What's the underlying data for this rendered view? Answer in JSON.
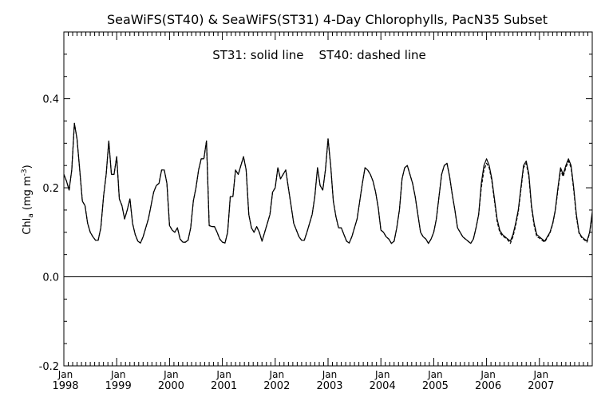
{
  "chart_data": {
    "type": "line",
    "title": "SeaWiFS(ST40) & SeaWiFS(ST31) 4-Day Chlorophylls, PacN35 Subset",
    "annotation": "ST31: solid line    ST40: dashed line",
    "ylabel_main": "Chl",
    "ylabel_sub": "a",
    "ylabel_unit_pre": " (mg m",
    "ylabel_unit_sup": "-3",
    "ylabel_unit_post": ")",
    "ylim": [
      -0.2,
      0.55
    ],
    "xlim": [
      1998.0,
      2008.0
    ],
    "yticks": [
      -0.2,
      0.0,
      0.2,
      0.4
    ],
    "ytick_labels": [
      "-0.2",
      "0.0",
      "0.2",
      "0.4"
    ],
    "xticks": [
      1998,
      1999,
      2000,
      2001,
      2002,
      2003,
      2004,
      2005,
      2006,
      2007
    ],
    "xtick_month_label": "Jan",
    "xtick_year_labels": [
      "1998",
      "1999",
      "2000",
      "2001",
      "2002",
      "2003",
      "2004",
      "2005",
      "2006",
      "2007"
    ],
    "zero_line": 0.0,
    "series": [
      {
        "name": "ST31",
        "style": "solid",
        "x": [
          1998.0,
          1998.05,
          1998.1,
          1998.15,
          1998.2,
          1998.25,
          1998.3,
          1998.35,
          1998.4,
          1998.45,
          1998.5,
          1998.55,
          1998.6,
          1998.65,
          1998.7,
          1998.75,
          1998.8,
          1998.85,
          1998.9,
          1998.95,
          1999.0,
          1999.05,
          1999.1,
          1999.15,
          1999.2,
          1999.25,
          1999.3,
          1999.35,
          1999.4,
          1999.45,
          1999.5,
          1999.55,
          1999.6,
          1999.65,
          1999.7,
          1999.75,
          1999.8,
          1999.85,
          1999.9,
          1999.95,
          2000.0,
          2000.05,
          2000.1,
          2000.15,
          2000.2,
          2000.25,
          2000.3,
          2000.35,
          2000.4,
          2000.45,
          2000.5,
          2000.55,
          2000.6,
          2000.65,
          2000.7,
          2000.75,
          2000.8,
          2000.85,
          2000.9,
          2000.95,
          2001.0,
          2001.05,
          2001.1,
          2001.15,
          2001.2,
          2001.25,
          2001.3,
          2001.35,
          2001.4,
          2001.45,
          2001.5,
          2001.55,
          2001.6,
          2001.65,
          2001.7,
          2001.75,
          2001.8,
          2001.85,
          2001.9,
          2001.95,
          2002.0,
          2002.05,
          2002.1,
          2002.15,
          2002.2,
          2002.25,
          2002.3,
          2002.35,
          2002.4,
          2002.45,
          2002.5,
          2002.55,
          2002.6,
          2002.65,
          2002.7,
          2002.75,
          2002.8,
          2002.85,
          2002.9,
          2002.95,
          2003.0,
          2003.05,
          2003.1,
          2003.15,
          2003.2,
          2003.25,
          2003.3,
          2003.35,
          2003.4,
          2003.45,
          2003.5,
          2003.55,
          2003.6,
          2003.65,
          2003.7,
          2003.75,
          2003.8,
          2003.85,
          2003.9,
          2003.95,
          2004.0,
          2004.05,
          2004.1,
          2004.15,
          2004.2,
          2004.25,
          2004.3,
          2004.35,
          2004.4,
          2004.45,
          2004.5,
          2004.55,
          2004.6,
          2004.65,
          2004.7,
          2004.75,
          2004.8,
          2004.85,
          2004.9,
          2004.95,
          2005.0,
          2005.05,
          2005.1,
          2005.15,
          2005.2,
          2005.25,
          2005.3,
          2005.35,
          2005.4,
          2005.45,
          2005.5,
          2005.55,
          2005.6,
          2005.65,
          2005.7,
          2005.75,
          2005.8,
          2005.85,
          2005.9,
          2005.95,
          2006.0,
          2006.05,
          2006.1,
          2006.15,
          2006.2,
          2006.25,
          2006.3,
          2006.35,
          2006.4,
          2006.45,
          2006.5,
          2006.55,
          2006.6,
          2006.65,
          2006.7,
          2006.75,
          2006.8,
          2006.85,
          2006.9,
          2006.95,
          2007.0,
          2007.05,
          2007.1,
          2007.15,
          2007.2,
          2007.25,
          2007.3,
          2007.35,
          2007.4,
          2007.45,
          2007.5,
          2007.55,
          2007.6,
          2007.65,
          2007.7,
          2007.75,
          2007.8,
          2007.85,
          2007.9,
          2007.95,
          2008.0
        ],
        "y": [
          0.23,
          0.215,
          0.195,
          0.24,
          0.345,
          0.31,
          0.24,
          0.17,
          0.16,
          0.12,
          0.1,
          0.09,
          0.082,
          0.082,
          0.11,
          0.18,
          0.23,
          0.305,
          0.23,
          0.23,
          0.27,
          0.175,
          0.16,
          0.13,
          0.15,
          0.175,
          0.12,
          0.095,
          0.08,
          0.076,
          0.09,
          0.11,
          0.13,
          0.16,
          0.19,
          0.205,
          0.21,
          0.24,
          0.24,
          0.21,
          0.115,
          0.105,
          0.1,
          0.11,
          0.085,
          0.078,
          0.078,
          0.082,
          0.11,
          0.17,
          0.2,
          0.24,
          0.265,
          0.265,
          0.305,
          0.115,
          0.113,
          0.113,
          0.1,
          0.085,
          0.078,
          0.076,
          0.1,
          0.18,
          0.18,
          0.24,
          0.23,
          0.25,
          0.27,
          0.24,
          0.14,
          0.11,
          0.1,
          0.113,
          0.1,
          0.08,
          0.1,
          0.12,
          0.14,
          0.19,
          0.2,
          0.245,
          0.22,
          0.23,
          0.24,
          0.2,
          0.16,
          0.12,
          0.105,
          0.09,
          0.082,
          0.082,
          0.1,
          0.12,
          0.14,
          0.18,
          0.245,
          0.205,
          0.195,
          0.24,
          0.31,
          0.25,
          0.17,
          0.135,
          0.11,
          0.11,
          0.095,
          0.08,
          0.076,
          0.09,
          0.11,
          0.13,
          0.17,
          0.21,
          0.245,
          0.24,
          0.23,
          0.215,
          0.19,
          0.155,
          0.105,
          0.1,
          0.09,
          0.085,
          0.075,
          0.08,
          0.11,
          0.15,
          0.22,
          0.245,
          0.25,
          0.23,
          0.21,
          0.18,
          0.14,
          0.1,
          0.09,
          0.085,
          0.075,
          0.085,
          0.1,
          0.13,
          0.18,
          0.23,
          0.25,
          0.255,
          0.225,
          0.185,
          0.15,
          0.11,
          0.1,
          0.09,
          0.085,
          0.08,
          0.075,
          0.085,
          0.11,
          0.14,
          0.21,
          0.25,
          0.265,
          0.25,
          0.22,
          0.175,
          0.13,
          0.105,
          0.095,
          0.09,
          0.085,
          0.08,
          0.095,
          0.12,
          0.15,
          0.2,
          0.25,
          0.26,
          0.23,
          0.16,
          0.12,
          0.095,
          0.09,
          0.085,
          0.08,
          0.09,
          0.1,
          0.12,
          0.15,
          0.2,
          0.245,
          0.23,
          0.25,
          0.265,
          0.25,
          0.2,
          0.14,
          0.1,
          0.09,
          0.085,
          0.08,
          0.1,
          0.145
        ]
      },
      {
        "name": "ST40",
        "style": "dashed",
        "x": [
          1998.0,
          1998.05,
          1998.1,
          1998.15,
          1998.2,
          1998.25,
          1998.3,
          1998.35,
          1998.4,
          1998.45,
          1998.5,
          1998.55,
          1998.6,
          1998.65,
          1998.7,
          1998.75,
          1998.8,
          1998.85,
          1998.9,
          1998.95,
          1999.0,
          1999.05,
          1999.1,
          1999.15,
          1999.2,
          1999.25,
          1999.3,
          1999.35,
          1999.4,
          1999.45,
          1999.5,
          1999.55,
          1999.6,
          1999.65,
          1999.7,
          1999.75,
          1999.8,
          1999.85,
          1999.9,
          1999.95,
          2000.0,
          2000.05,
          2000.1,
          2000.15,
          2000.2,
          2000.25,
          2000.3,
          2000.35,
          2000.4,
          2000.45,
          2000.5,
          2000.55,
          2000.6,
          2000.65,
          2000.7,
          2000.75,
          2000.8,
          2000.85,
          2000.9,
          2000.95,
          2001.0,
          2001.05,
          2001.1,
          2001.15,
          2001.2,
          2001.25,
          2001.3,
          2001.35,
          2001.4,
          2001.45,
          2001.5,
          2001.55,
          2001.6,
          2001.65,
          2001.7,
          2001.75,
          2001.8,
          2001.85,
          2001.9,
          2001.95,
          2002.0,
          2002.05,
          2002.1,
          2002.15,
          2002.2,
          2002.25,
          2002.3,
          2002.35,
          2002.4,
          2002.45,
          2002.5,
          2002.55,
          2002.6,
          2002.65,
          2002.7,
          2002.75,
          2002.8,
          2002.85,
          2002.9,
          2002.95,
          2003.0,
          2003.05,
          2003.1,
          2003.15,
          2003.2,
          2003.25,
          2003.3,
          2003.35,
          2003.4,
          2003.45,
          2003.5,
          2003.55,
          2003.6,
          2003.65,
          2003.7,
          2003.75,
          2003.8,
          2003.85,
          2003.9,
          2003.95,
          2004.0,
          2004.05,
          2004.1,
          2004.15,
          2004.2,
          2004.25,
          2004.3,
          2004.35,
          2004.4,
          2004.45,
          2004.5,
          2004.55,
          2004.6,
          2004.65,
          2004.7,
          2004.75,
          2004.8,
          2004.85,
          2004.9,
          2004.95,
          2005.0,
          2005.05,
          2005.1,
          2005.15,
          2005.2,
          2005.25,
          2005.3,
          2005.35,
          2005.4,
          2005.45,
          2005.5,
          2005.55,
          2005.6,
          2005.65,
          2005.7,
          2005.75,
          2005.8,
          2005.85,
          2005.9,
          2005.95,
          2006.0,
          2006.05,
          2006.1,
          2006.15,
          2006.2,
          2006.25,
          2006.3,
          2006.35,
          2006.4,
          2006.45,
          2006.5,
          2006.55,
          2006.6,
          2006.65,
          2006.7,
          2006.75,
          2006.8,
          2006.85,
          2006.9,
          2006.95,
          2007.0,
          2007.05,
          2007.1,
          2007.15,
          2007.2,
          2007.25,
          2007.3,
          2007.35,
          2007.4,
          2007.45,
          2007.5,
          2007.55,
          2007.6,
          2007.65,
          2007.7,
          2007.75,
          2007.8,
          2007.85,
          2007.9,
          2007.95,
          2008.0
        ],
        "y": [
          0.23,
          0.215,
          0.195,
          0.24,
          0.345,
          0.31,
          0.24,
          0.17,
          0.16,
          0.12,
          0.1,
          0.09,
          0.082,
          0.082,
          0.11,
          0.18,
          0.23,
          0.305,
          0.23,
          0.23,
          0.27,
          0.175,
          0.16,
          0.13,
          0.15,
          0.175,
          0.12,
          0.095,
          0.08,
          0.076,
          0.09,
          0.11,
          0.13,
          0.16,
          0.19,
          0.205,
          0.21,
          0.24,
          0.24,
          0.21,
          0.115,
          0.105,
          0.1,
          0.11,
          0.085,
          0.078,
          0.078,
          0.082,
          0.11,
          0.17,
          0.2,
          0.24,
          0.265,
          0.265,
          0.305,
          0.115,
          0.113,
          0.113,
          0.1,
          0.085,
          0.078,
          0.076,
          0.1,
          0.18,
          0.18,
          0.24,
          0.23,
          0.25,
          0.27,
          0.24,
          0.14,
          0.11,
          0.1,
          0.113,
          0.1,
          0.08,
          0.1,
          0.12,
          0.14,
          0.19,
          0.2,
          0.245,
          0.22,
          0.23,
          0.24,
          0.2,
          0.16,
          0.12,
          0.105,
          0.09,
          0.082,
          0.082,
          0.1,
          0.12,
          0.14,
          0.18,
          0.245,
          0.205,
          0.195,
          0.24,
          0.31,
          0.25,
          0.17,
          0.135,
          0.11,
          0.11,
          0.095,
          0.08,
          0.076,
          0.09,
          0.11,
          0.13,
          0.17,
          0.21,
          0.245,
          0.24,
          0.23,
          0.215,
          0.19,
          0.155,
          0.105,
          0.1,
          0.09,
          0.085,
          0.075,
          0.08,
          0.11,
          0.15,
          0.22,
          0.245,
          0.25,
          0.23,
          0.21,
          0.18,
          0.14,
          0.1,
          0.09,
          0.085,
          0.075,
          0.085,
          0.1,
          0.13,
          0.18,
          0.23,
          0.25,
          0.255,
          0.225,
          0.185,
          0.15,
          0.11,
          0.1,
          0.09,
          0.085,
          0.08,
          0.075,
          0.085,
          0.11,
          0.14,
          0.2,
          0.24,
          0.255,
          0.245,
          0.215,
          0.17,
          0.125,
          0.1,
          0.092,
          0.088,
          0.083,
          0.075,
          0.09,
          0.115,
          0.145,
          0.195,
          0.245,
          0.255,
          0.225,
          0.155,
          0.115,
          0.09,
          0.087,
          0.082,
          0.078,
          0.088,
          0.098,
          0.118,
          0.148,
          0.195,
          0.24,
          0.225,
          0.245,
          0.26,
          0.245,
          0.195,
          0.135,
          0.098,
          0.088,
          0.083,
          0.078,
          0.098,
          0.14
        ]
      }
    ],
    "grid": false,
    "legend": "none"
  }
}
